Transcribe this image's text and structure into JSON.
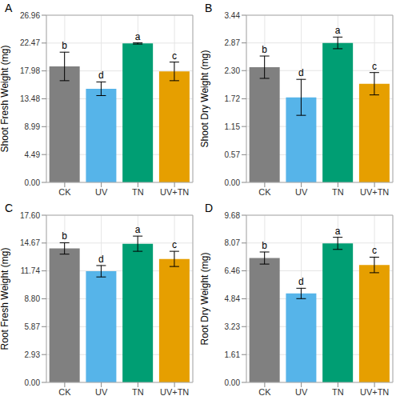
{
  "chart_data": [
    {
      "type": "bar",
      "title": "A",
      "y_label": "Shoot Fresh Weight (mg)",
      "categories": [
        "CK",
        "UV",
        "TN",
        "UV+TN"
      ],
      "values": [
        18.7,
        15.1,
        22.4,
        17.9
      ],
      "errors": [
        2.3,
        1.1,
        0.1,
        1.5
      ],
      "annotations": [
        "b",
        "d",
        "a",
        "c"
      ],
      "colors": [
        "#808080",
        "#56B4E9",
        "#009E73",
        "#E69F00"
      ],
      "ylim": [
        0,
        26.96
      ],
      "yticks": [
        {
          "value": 0,
          "label": "0.00"
        },
        4.49,
        8.99,
        13.48,
        17.98,
        22.47,
        26.96
      ],
      "grid": true
    },
    {
      "type": "bar",
      "title": "B",
      "y_label": "Shoot Dry Weight (mg)",
      "categories": [
        "CK",
        "UV",
        "TN",
        "UV+TN"
      ],
      "values": [
        2.37,
        1.75,
        2.87,
        2.03
      ],
      "errors": [
        0.23,
        0.37,
        0.12,
        0.23
      ],
      "annotations": [
        "b",
        "d",
        "a",
        "c"
      ],
      "colors": [
        "#808080",
        "#56B4E9",
        "#009E73",
        "#E69F00"
      ],
      "ylim": [
        0,
        3.44
      ],
      "yticks": [
        {
          "value": 0,
          "label": "0.00"
        },
        0.57,
        1.15,
        1.72,
        {
          "value": 2.3,
          "label": "2.30"
        },
        2.87,
        3.44
      ],
      "grid": true
    },
    {
      "type": "bar",
      "title": "C",
      "y_label": "Root Fresh Weight (mg)",
      "categories": [
        "CK",
        "UV",
        "TN",
        "UV+TN"
      ],
      "values": [
        14.1,
        11.7,
        14.6,
        13.0
      ],
      "errors": [
        0.6,
        0.6,
        0.8,
        0.8
      ],
      "annotations": [
        "b",
        "d",
        "a",
        "c"
      ],
      "colors": [
        "#808080",
        "#56B4E9",
        "#009E73",
        "#E69F00"
      ],
      "ylim": [
        0,
        17.6
      ],
      "yticks": [
        {
          "value": 0,
          "label": "0.00"
        },
        2.93,
        5.87,
        {
          "value": 8.8,
          "label": "8.80"
        },
        11.74,
        14.67,
        {
          "value": 17.6,
          "label": "17.60"
        }
      ],
      "grid": true
    },
    {
      "type": "bar",
      "title": "D",
      "y_label": "Root Dry Weight (mg)",
      "categories": [
        "CK",
        "UV",
        "TN",
        "UV+TN"
      ],
      "values": [
        7.2,
        5.15,
        8.05,
        6.8
      ],
      "errors": [
        0.35,
        0.3,
        0.35,
        0.45
      ],
      "annotations": [
        "b",
        "d",
        "a",
        "c"
      ],
      "colors": [
        "#808080",
        "#56B4E9",
        "#009E73",
        "#E69F00"
      ],
      "ylim": [
        0,
        9.68
      ],
      "yticks": [
        {
          "value": 0,
          "label": "0.00"
        },
        1.61,
        3.23,
        4.84,
        6.46,
        8.07,
        9.68
      ],
      "grid": true
    }
  ]
}
